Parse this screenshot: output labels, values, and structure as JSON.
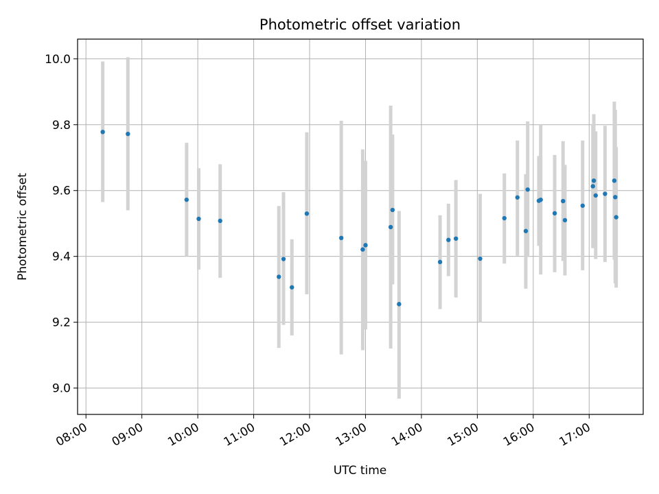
{
  "chart_data": {
    "type": "scatter",
    "title": "Photometric offset variation",
    "xlabel": "UTC time",
    "ylabel": "Photometric offset",
    "grid": true,
    "x_ticks": [
      "08:00",
      "09:00",
      "10:00",
      "11:00",
      "12:00",
      "13:00",
      "14:00",
      "15:00",
      "16:00",
      "17:00"
    ],
    "y_ticks": [
      "9.0",
      "9.2",
      "9.4",
      "9.6",
      "9.8",
      "10.0"
    ],
    "xlim": [
      "07:51",
      "17:58"
    ],
    "ylim": [
      8.92,
      10.06
    ],
    "colors": {
      "point": "#1f77b4",
      "errorbar": "#d3d3d3",
      "grid": "#b0b0b0"
    },
    "series": [
      {
        "points": [
          {
            "x": "08:18",
            "y": 9.778,
            "low": 9.565,
            "high": 9.992
          },
          {
            "x": "08:45",
            "y": 9.772,
            "low": 9.54,
            "high": 10.005
          },
          {
            "x": "09:48",
            "y": 9.572,
            "low": 9.4,
            "high": 9.745
          },
          {
            "x": "10:01",
            "y": 9.514,
            "low": 9.36,
            "high": 9.668
          },
          {
            "x": "10:24",
            "y": 9.508,
            "low": 9.335,
            "high": 9.68
          },
          {
            "x": "11:27",
            "y": 9.338,
            "low": 9.122,
            "high": 9.553
          },
          {
            "x": "11:32",
            "y": 9.392,
            "low": 9.192,
            "high": 9.595
          },
          {
            "x": "11:41",
            "y": 9.306,
            "low": 9.16,
            "high": 9.452
          },
          {
            "x": "11:57",
            "y": 9.53,
            "low": 9.285,
            "high": 9.777
          },
          {
            "x": "12:34",
            "y": 9.456,
            "low": 9.102,
            "high": 9.812
          },
          {
            "x": "12:57",
            "y": 9.421,
            "low": 9.115,
            "high": 9.725
          },
          {
            "x": "13:00",
            "y": 9.434,
            "low": 9.178,
            "high": 9.69
          },
          {
            "x": "13:27",
            "y": 9.489,
            "low": 9.12,
            "high": 9.858
          },
          {
            "x": "13:29",
            "y": 9.541,
            "low": 9.315,
            "high": 9.77
          },
          {
            "x": "13:36",
            "y": 9.255,
            "low": 8.968,
            "high": 9.538
          },
          {
            "x": "14:20",
            "y": 9.383,
            "low": 9.24,
            "high": 9.525
          },
          {
            "x": "14:29",
            "y": 9.45,
            "low": 9.34,
            "high": 9.56
          },
          {
            "x": "14:37",
            "y": 9.454,
            "low": 9.275,
            "high": 9.632
          },
          {
            "x": "15:03",
            "y": 9.393,
            "low": 9.2,
            "high": 9.59
          },
          {
            "x": "15:29",
            "y": 9.516,
            "low": 9.378,
            "high": 9.652
          },
          {
            "x": "15:43",
            "y": 9.579,
            "low": 9.402,
            "high": 9.752
          },
          {
            "x": "15:52",
            "y": 9.477,
            "low": 9.302,
            "high": 9.65
          },
          {
            "x": "15:54",
            "y": 9.603,
            "low": 9.398,
            "high": 9.81
          },
          {
            "x": "16:06",
            "y": 9.569,
            "low": 9.432,
            "high": 9.705
          },
          {
            "x": "16:08",
            "y": 9.572,
            "low": 9.345,
            "high": 9.8
          },
          {
            "x": "16:23",
            "y": 9.531,
            "low": 9.352,
            "high": 9.708
          },
          {
            "x": "16:32",
            "y": 9.568,
            "low": 9.386,
            "high": 9.75
          },
          {
            "x": "16:34",
            "y": 9.51,
            "low": 9.342,
            "high": 9.678
          },
          {
            "x": "16:53",
            "y": 9.554,
            "low": 9.358,
            "high": 9.752
          },
          {
            "x": "17:04",
            "y": 9.613,
            "low": 9.425,
            "high": 9.802
          },
          {
            "x": "17:05",
            "y": 9.63,
            "low": 9.428,
            "high": 9.832
          },
          {
            "x": "17:07",
            "y": 9.585,
            "low": 9.392,
            "high": 9.78
          },
          {
            "x": "17:17",
            "y": 9.59,
            "low": 9.383,
            "high": 9.797
          },
          {
            "x": "17:27",
            "y": 9.63,
            "low": 9.39,
            "high": 9.87
          },
          {
            "x": "17:28",
            "y": 9.58,
            "low": 9.318,
            "high": 9.845
          },
          {
            "x": "17:29",
            "y": 9.519,
            "low": 9.305,
            "high": 9.732
          }
        ]
      }
    ]
  }
}
